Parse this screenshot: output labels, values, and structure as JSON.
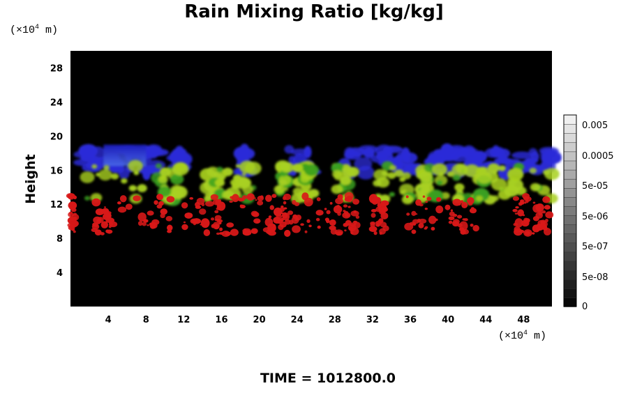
{
  "chart_data": {
    "type": "heatmap",
    "title": "Rain Mixing Ratio [kg/kg]",
    "ylabel": "Height",
    "y_unit_parts": [
      "(×10",
      "4",
      " m)"
    ],
    "x_unit_parts": [
      "(×10",
      "4",
      " m)"
    ],
    "xlim": [
      0,
      51
    ],
    "ylim": [
      0,
      30
    ],
    "x_ticks": [
      4,
      8,
      12,
      16,
      20,
      24,
      28,
      32,
      36,
      40,
      44,
      48
    ],
    "y_ticks": [
      4,
      8,
      12,
      16,
      20,
      24,
      28
    ],
    "grid": false,
    "background_color": "#000000",
    "colorbar": {
      "labels": [
        "0.005",
        "0.0005",
        "5e-05",
        "5e-06",
        "5e-07",
        "5e-08",
        "0"
      ],
      "n_levels": 21,
      "scale": "log"
    },
    "layers": [
      {
        "color": "#2b2bd8",
        "height_range": [
          15,
          19
        ]
      },
      {
        "color": "#a8d020",
        "height_range": [
          12.5,
          16.5
        ]
      },
      {
        "color": "#d81818",
        "height_range": [
          8.5,
          13
        ]
      }
    ]
  },
  "time_label": "TIME = 1012800.0"
}
